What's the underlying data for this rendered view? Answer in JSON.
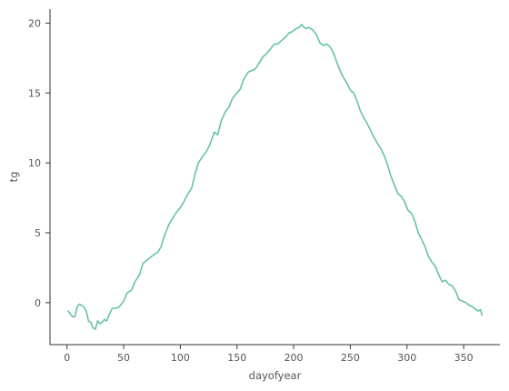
{
  "chart_data": {
    "type": "line",
    "title": "",
    "xlabel": "dayofyear",
    "ylabel": "tg",
    "xlim": [
      -15,
      382
    ],
    "ylim": [
      -3.0,
      21.0
    ],
    "xticks": [
      0,
      50,
      100,
      150,
      200,
      250,
      300,
      350
    ],
    "yticks": [
      0,
      5,
      10,
      15,
      20
    ],
    "grid": false,
    "line_color": "#66c2a5",
    "series": [
      {
        "x": [
          1,
          3,
          5,
          7,
          9,
          11,
          13,
          15,
          17,
          19,
          21,
          23,
          25,
          27,
          29,
          31,
          33,
          35,
          37,
          40,
          43,
          46,
          50,
          53,
          57,
          60,
          64,
          67,
          70,
          73,
          76,
          80,
          83,
          86,
          90,
          93,
          96,
          100,
          103,
          106,
          110,
          113,
          116,
          120,
          123,
          126,
          130,
          133,
          136,
          140,
          143,
          146,
          150,
          153,
          156,
          160,
          163,
          166,
          170,
          173,
          176,
          180,
          183,
          186,
          190,
          193,
          196,
          199,
          202,
          205,
          207,
          209,
          211,
          213,
          215,
          217,
          220,
          223,
          226,
          229,
          232,
          235,
          238,
          241,
          244,
          247,
          250,
          253,
          256,
          259,
          262,
          265,
          268,
          271,
          274,
          277,
          280,
          283,
          286,
          289,
          292,
          295,
          298,
          301,
          304,
          307,
          310,
          313,
          316,
          319,
          322,
          325,
          328,
          331,
          334,
          337,
          340,
          343,
          346,
          349,
          352,
          355,
          358,
          361,
          363,
          365,
          366
        ],
        "y": [
          -0.6,
          -0.8,
          -1.0,
          -1.0,
          -0.3,
          -0.1,
          -0.2,
          -0.3,
          -0.6,
          -1.3,
          -1.4,
          -1.8,
          -1.9,
          -1.3,
          -1.5,
          -1.4,
          -1.2,
          -1.3,
          -0.9,
          -0.4,
          -0.4,
          -0.3,
          0.1,
          0.7,
          0.9,
          1.5,
          2.0,
          2.8,
          3.0,
          3.2,
          3.4,
          3.6,
          4.0,
          4.8,
          5.6,
          6.0,
          6.4,
          6.8,
          7.2,
          7.7,
          8.2,
          9.2,
          10.0,
          10.5,
          10.8,
          11.3,
          12.2,
          12.0,
          13.0,
          13.7,
          14.0,
          14.6,
          15.0,
          15.3,
          16.0,
          16.5,
          16.6,
          16.7,
          17.2,
          17.6,
          17.8,
          18.2,
          18.5,
          18.5,
          18.8,
          19.0,
          19.3,
          19.4,
          19.6,
          19.7,
          19.9,
          19.7,
          19.6,
          19.7,
          19.6,
          19.5,
          19.2,
          18.6,
          18.4,
          18.5,
          18.3,
          17.9,
          17.2,
          16.6,
          16.1,
          15.7,
          15.2,
          15.0,
          14.4,
          13.7,
          13.2,
          12.8,
          12.3,
          11.8,
          11.4,
          11.0,
          10.5,
          9.8,
          9.0,
          8.4,
          7.8,
          7.6,
          7.2,
          6.6,
          6.4,
          5.8,
          5.0,
          4.5,
          4.0,
          3.3,
          2.9,
          2.6,
          2.0,
          1.5,
          1.6,
          1.3,
          1.2,
          0.8,
          0.2,
          0.1,
          0.0,
          -0.2,
          -0.3,
          -0.5,
          -0.6,
          -0.5,
          -0.9
        ]
      }
    ]
  }
}
